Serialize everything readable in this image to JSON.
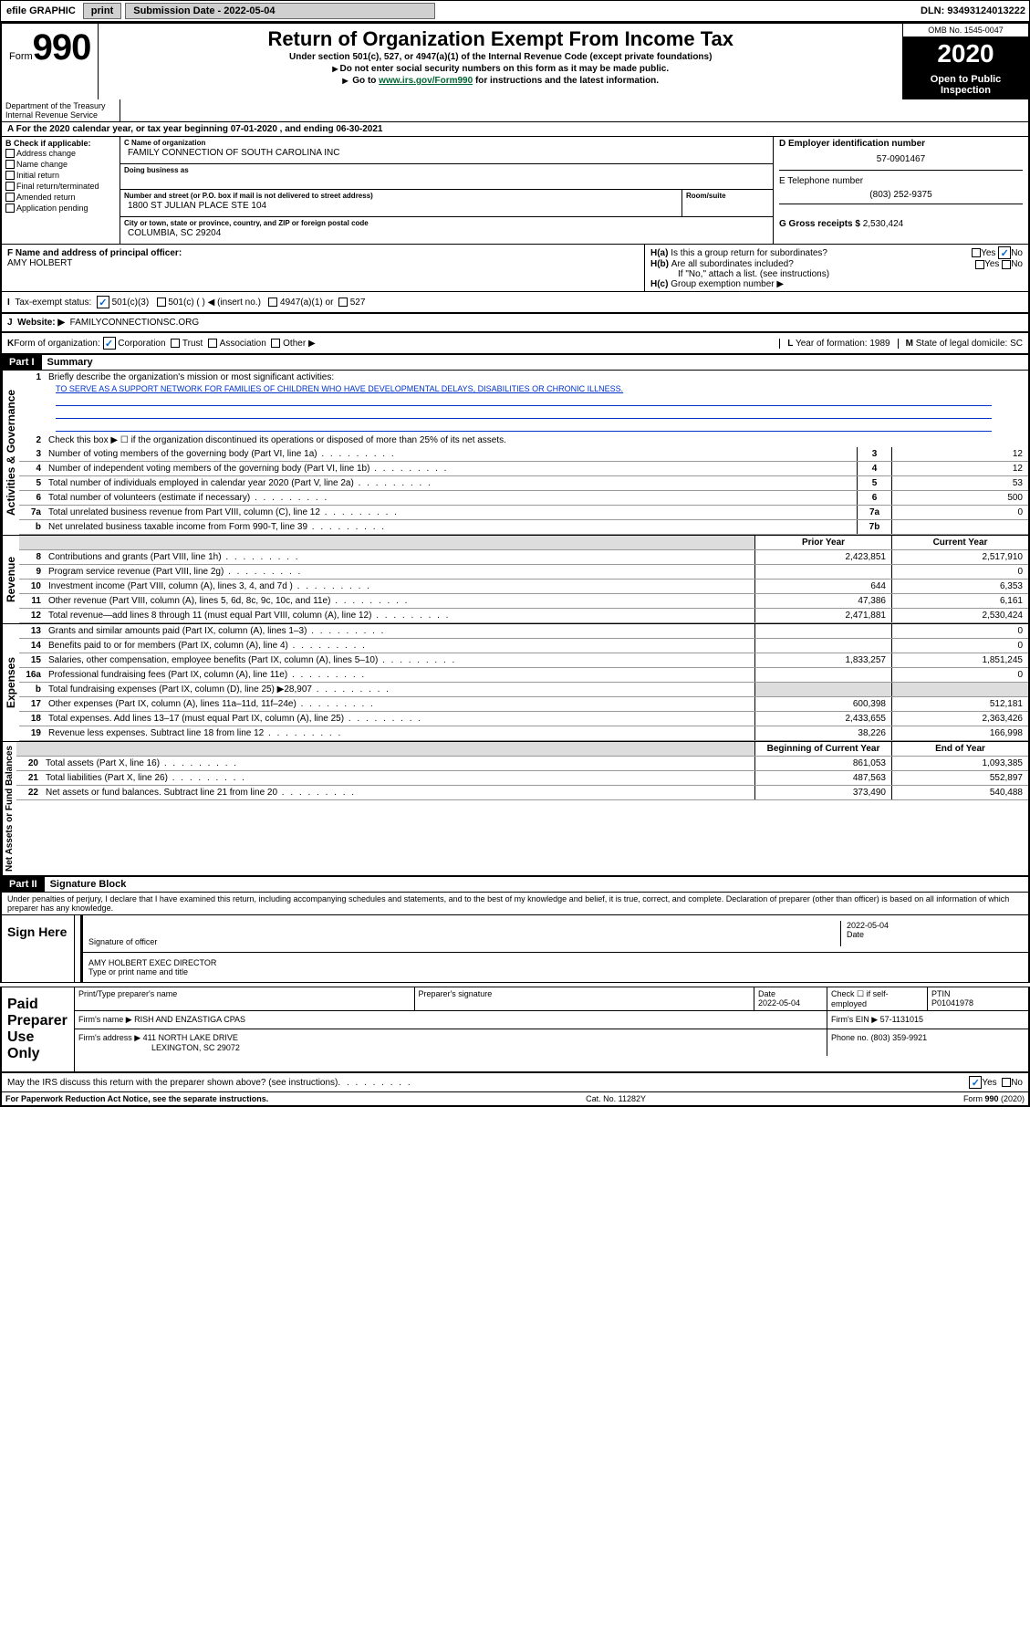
{
  "topbar": {
    "efile": "efile GRAPHIC",
    "print": "print",
    "sub_label": "Submission Date - 2022-05-04",
    "dln": "DLN: 93493124013222"
  },
  "header": {
    "form_word": "Form",
    "form_num": "990",
    "title": "Return of Organization Exempt From Income Tax",
    "line1": "Under section 501(c), 527, or 4947(a)(1) of the Internal Revenue Code (except private foundations)",
    "line2": "Do not enter social security numbers on this form as it may be made public.",
    "line3a": "Go to ",
    "line3_link": "www.irs.gov/Form990",
    "line3b": " for instructions and the latest information.",
    "omb": "OMB No. 1545-0047",
    "year": "2020",
    "open": "Open to Public Inspection",
    "dept": "Department of the Treasury Internal Revenue Service"
  },
  "a_line": "For the 2020 calendar year, or tax year beginning 07-01-2020    , and ending 06-30-2021",
  "b": {
    "label": "Check if applicable:",
    "opts": [
      "Address change",
      "Name change",
      "Initial return",
      "Final return/terminated",
      "Amended return",
      "Application pending"
    ]
  },
  "c": {
    "name_label": "C Name of organization",
    "name": "FAMILY CONNECTION OF SOUTH CAROLINA INC",
    "dba_label": "Doing business as",
    "addr_label": "Number and street (or P.O. box if mail is not delivered to street address)",
    "room_label": "Room/suite",
    "addr": "1800 ST JULIAN PLACE STE 104",
    "city_label": "City or town, state or province, country, and ZIP or foreign postal code",
    "city": "COLUMBIA, SC  29204"
  },
  "d": {
    "label": "D Employer identification number",
    "val": "57-0901467"
  },
  "e": {
    "label": "E Telephone number",
    "val": "(803) 252-9375"
  },
  "g": {
    "label": "G Gross receipts $",
    "val": "2,530,424"
  },
  "f": {
    "label": "F  Name and address of principal officer:",
    "val": "AMY HOLBERT"
  },
  "h": {
    "a": "Is this a group return for subordinates?",
    "b": "Are all subordinates included?",
    "b_note": "If \"No,\" attach a list. (see instructions)",
    "c": "Group exemption number ▶",
    "yes": "Yes",
    "no": "No"
  },
  "i": {
    "label": "Tax-exempt status:",
    "opts": [
      "501(c)(3)",
      "501(c) (  ) ◀ (insert no.)",
      "4947(a)(1) or",
      "527"
    ]
  },
  "j": {
    "label": "Website: ▶",
    "val": "FAMILYCONNECTIONSC.ORG"
  },
  "k": {
    "label": "Form of organization:",
    "opts": [
      "Corporation",
      "Trust",
      "Association",
      "Other ▶"
    ]
  },
  "l": {
    "label": "Year of formation:",
    "val": "1989"
  },
  "m": {
    "label": "State of legal domicile:",
    "val": "SC"
  },
  "part1": {
    "header": "Part I",
    "title": "Summary",
    "q1": "Briefly describe the organization's mission or most significant activities:",
    "mission": "TO SERVE AS A SUPPORT NETWORK FOR FAMILIES OF CHILDREN WHO HAVE DEVELOPMENTAL DELAYS, DISABILITIES OR CHRONIC ILLNESS.",
    "q2": "Check this box ▶ ☐  if the organization discontinued its operations or disposed of more than 25% of its net assets.",
    "sideA": "Activities & Governance",
    "sideB": "Revenue",
    "sideC": "Expenses",
    "sideD": "Net Assets or Fund Balances",
    "prior": "Prior Year",
    "current": "Current Year",
    "begin": "Beginning of Current Year",
    "end": "End of Year",
    "rows_gov": [
      {
        "n": "3",
        "d": "Number of voting members of the governing body (Part VI, line 1a)",
        "box": "3",
        "v": "12"
      },
      {
        "n": "4",
        "d": "Number of independent voting members of the governing body (Part VI, line 1b)",
        "box": "4",
        "v": "12"
      },
      {
        "n": "5",
        "d": "Total number of individuals employed in calendar year 2020 (Part V, line 2a)",
        "box": "5",
        "v": "53"
      },
      {
        "n": "6",
        "d": "Total number of volunteers (estimate if necessary)",
        "box": "6",
        "v": "500"
      },
      {
        "n": "7a",
        "d": "Total unrelated business revenue from Part VIII, column (C), line 12",
        "box": "7a",
        "v": "0"
      },
      {
        "n": "b",
        "d": "Net unrelated business taxable income from Form 990-T, line 39",
        "box": "7b",
        "v": ""
      }
    ],
    "rows_rev": [
      {
        "n": "8",
        "d": "Contributions and grants (Part VIII, line 1h)",
        "p": "2,423,851",
        "c": "2,517,910"
      },
      {
        "n": "9",
        "d": "Program service revenue (Part VIII, line 2g)",
        "p": "",
        "c": "0"
      },
      {
        "n": "10",
        "d": "Investment income (Part VIII, column (A), lines 3, 4, and 7d )",
        "p": "644",
        "c": "6,353"
      },
      {
        "n": "11",
        "d": "Other revenue (Part VIII, column (A), lines 5, 6d, 8c, 9c, 10c, and 11e)",
        "p": "47,386",
        "c": "6,161"
      },
      {
        "n": "12",
        "d": "Total revenue—add lines 8 through 11 (must equal Part VIII, column (A), line 12)",
        "p": "2,471,881",
        "c": "2,530,424"
      }
    ],
    "rows_exp": [
      {
        "n": "13",
        "d": "Grants and similar amounts paid (Part IX, column (A), lines 1–3)",
        "p": "",
        "c": "0"
      },
      {
        "n": "14",
        "d": "Benefits paid to or for members (Part IX, column (A), line 4)",
        "p": "",
        "c": "0"
      },
      {
        "n": "15",
        "d": "Salaries, other compensation, employee benefits (Part IX, column (A), lines 5–10)",
        "p": "1,833,257",
        "c": "1,851,245"
      },
      {
        "n": "16a",
        "d": "Professional fundraising fees (Part IX, column (A), line 11e)",
        "p": "",
        "c": "0"
      },
      {
        "n": "b",
        "d": "Total fundraising expenses (Part IX, column (D), line 25) ▶28,907",
        "p": "",
        "c": "",
        "grey": true
      },
      {
        "n": "17",
        "d": "Other expenses (Part IX, column (A), lines 11a–11d, 11f–24e)",
        "p": "600,398",
        "c": "512,181"
      },
      {
        "n": "18",
        "d": "Total expenses. Add lines 13–17 (must equal Part IX, column (A), line 25)",
        "p": "2,433,655",
        "c": "2,363,426"
      },
      {
        "n": "19",
        "d": "Revenue less expenses. Subtract line 18 from line 12",
        "p": "38,226",
        "c": "166,998"
      }
    ],
    "rows_net": [
      {
        "n": "20",
        "d": "Total assets (Part X, line 16)",
        "p": "861,053",
        "c": "1,093,385"
      },
      {
        "n": "21",
        "d": "Total liabilities (Part X, line 26)",
        "p": "487,563",
        "c": "552,897"
      },
      {
        "n": "22",
        "d": "Net assets or fund balances. Subtract line 21 from line 20",
        "p": "373,490",
        "c": "540,488"
      }
    ]
  },
  "part2": {
    "header": "Part II",
    "title": "Signature Block",
    "penalty": "Under penalties of perjury, I declare that I have examined this return, including accompanying schedules and statements, and to the best of my knowledge and belief, it is true, correct, and complete. Declaration of preparer (other than officer) is based on all information of which preparer has any knowledge.",
    "sign_here": "Sign Here",
    "sig_officer": "Signature of officer",
    "date": "Date",
    "date_val": "2022-05-04",
    "officer": "AMY HOLBERT  EXEC DIRECTOR",
    "type_name": "Type or print name and title",
    "paid": "Paid Preparer Use Only",
    "prep_name_label": "Print/Type preparer's name",
    "prep_sig_label": "Preparer's signature",
    "date_label": "Date",
    "date2": "2022-05-04",
    "check_self": "Check ☐ if self-employed",
    "ptin_label": "PTIN",
    "ptin": "P01041978",
    "firm_name_label": "Firm's name   ▶",
    "firm_name": "RISH AND ENZASTIGA CPAS",
    "firm_ein_label": "Firm's EIN ▶",
    "firm_ein": "57-1131015",
    "firm_addr_label": "Firm's address ▶",
    "firm_addr": "411 NORTH LAKE DRIVE",
    "firm_city": "LEXINGTON, SC  29072",
    "phone_label": "Phone no.",
    "phone": "(803) 359-9921",
    "discuss": "May the IRS discuss this return with the preparer shown above? (see instructions)",
    "yes": "Yes",
    "no": "No"
  },
  "footer": {
    "left": "For Paperwork Reduction Act Notice, see the separate instructions.",
    "mid": "Cat. No. 11282Y",
    "right": "Form 990 (2020)"
  },
  "colors": {
    "black": "#000000",
    "link_green": "#006633",
    "blue": "#0033cc",
    "check_blue": "#0066cc",
    "grey": "#dddddd"
  }
}
